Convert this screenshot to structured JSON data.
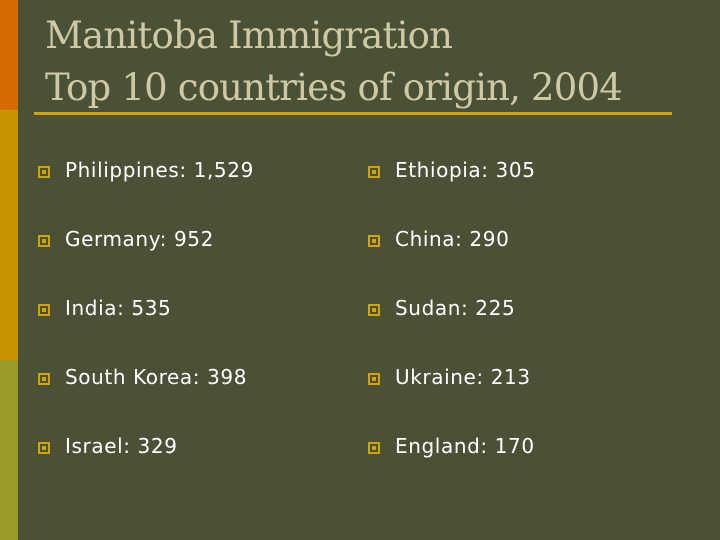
{
  "slide": {
    "title_line1": "Manitoba Immigration",
    "title_line2": "Top 10 countries of origin, 2004"
  },
  "left_column": [
    {
      "text": "Philippines: 1,529"
    },
    {
      "text": "Germany: 952"
    },
    {
      "text": "India: 535"
    },
    {
      "text": "South Korea: 398"
    },
    {
      "text": "Israel: 329"
    }
  ],
  "right_column": [
    {
      "text": "Ethiopia: 305"
    },
    {
      "text": "China: 290"
    },
    {
      "text": "Sudan: 225"
    },
    {
      "text": "Ukraine: 213"
    },
    {
      "text": "England: 170"
    }
  ],
  "colors": {
    "background": "#4b5137",
    "title_text": "#cfc8a4",
    "accent": "#d3a300",
    "body_text": "#ffffff",
    "strip_orange": "#d56a00",
    "strip_gold": "#c99300",
    "strip_olive": "#9a9a28"
  },
  "icons": {
    "bullet": "square-bullet-icon"
  }
}
